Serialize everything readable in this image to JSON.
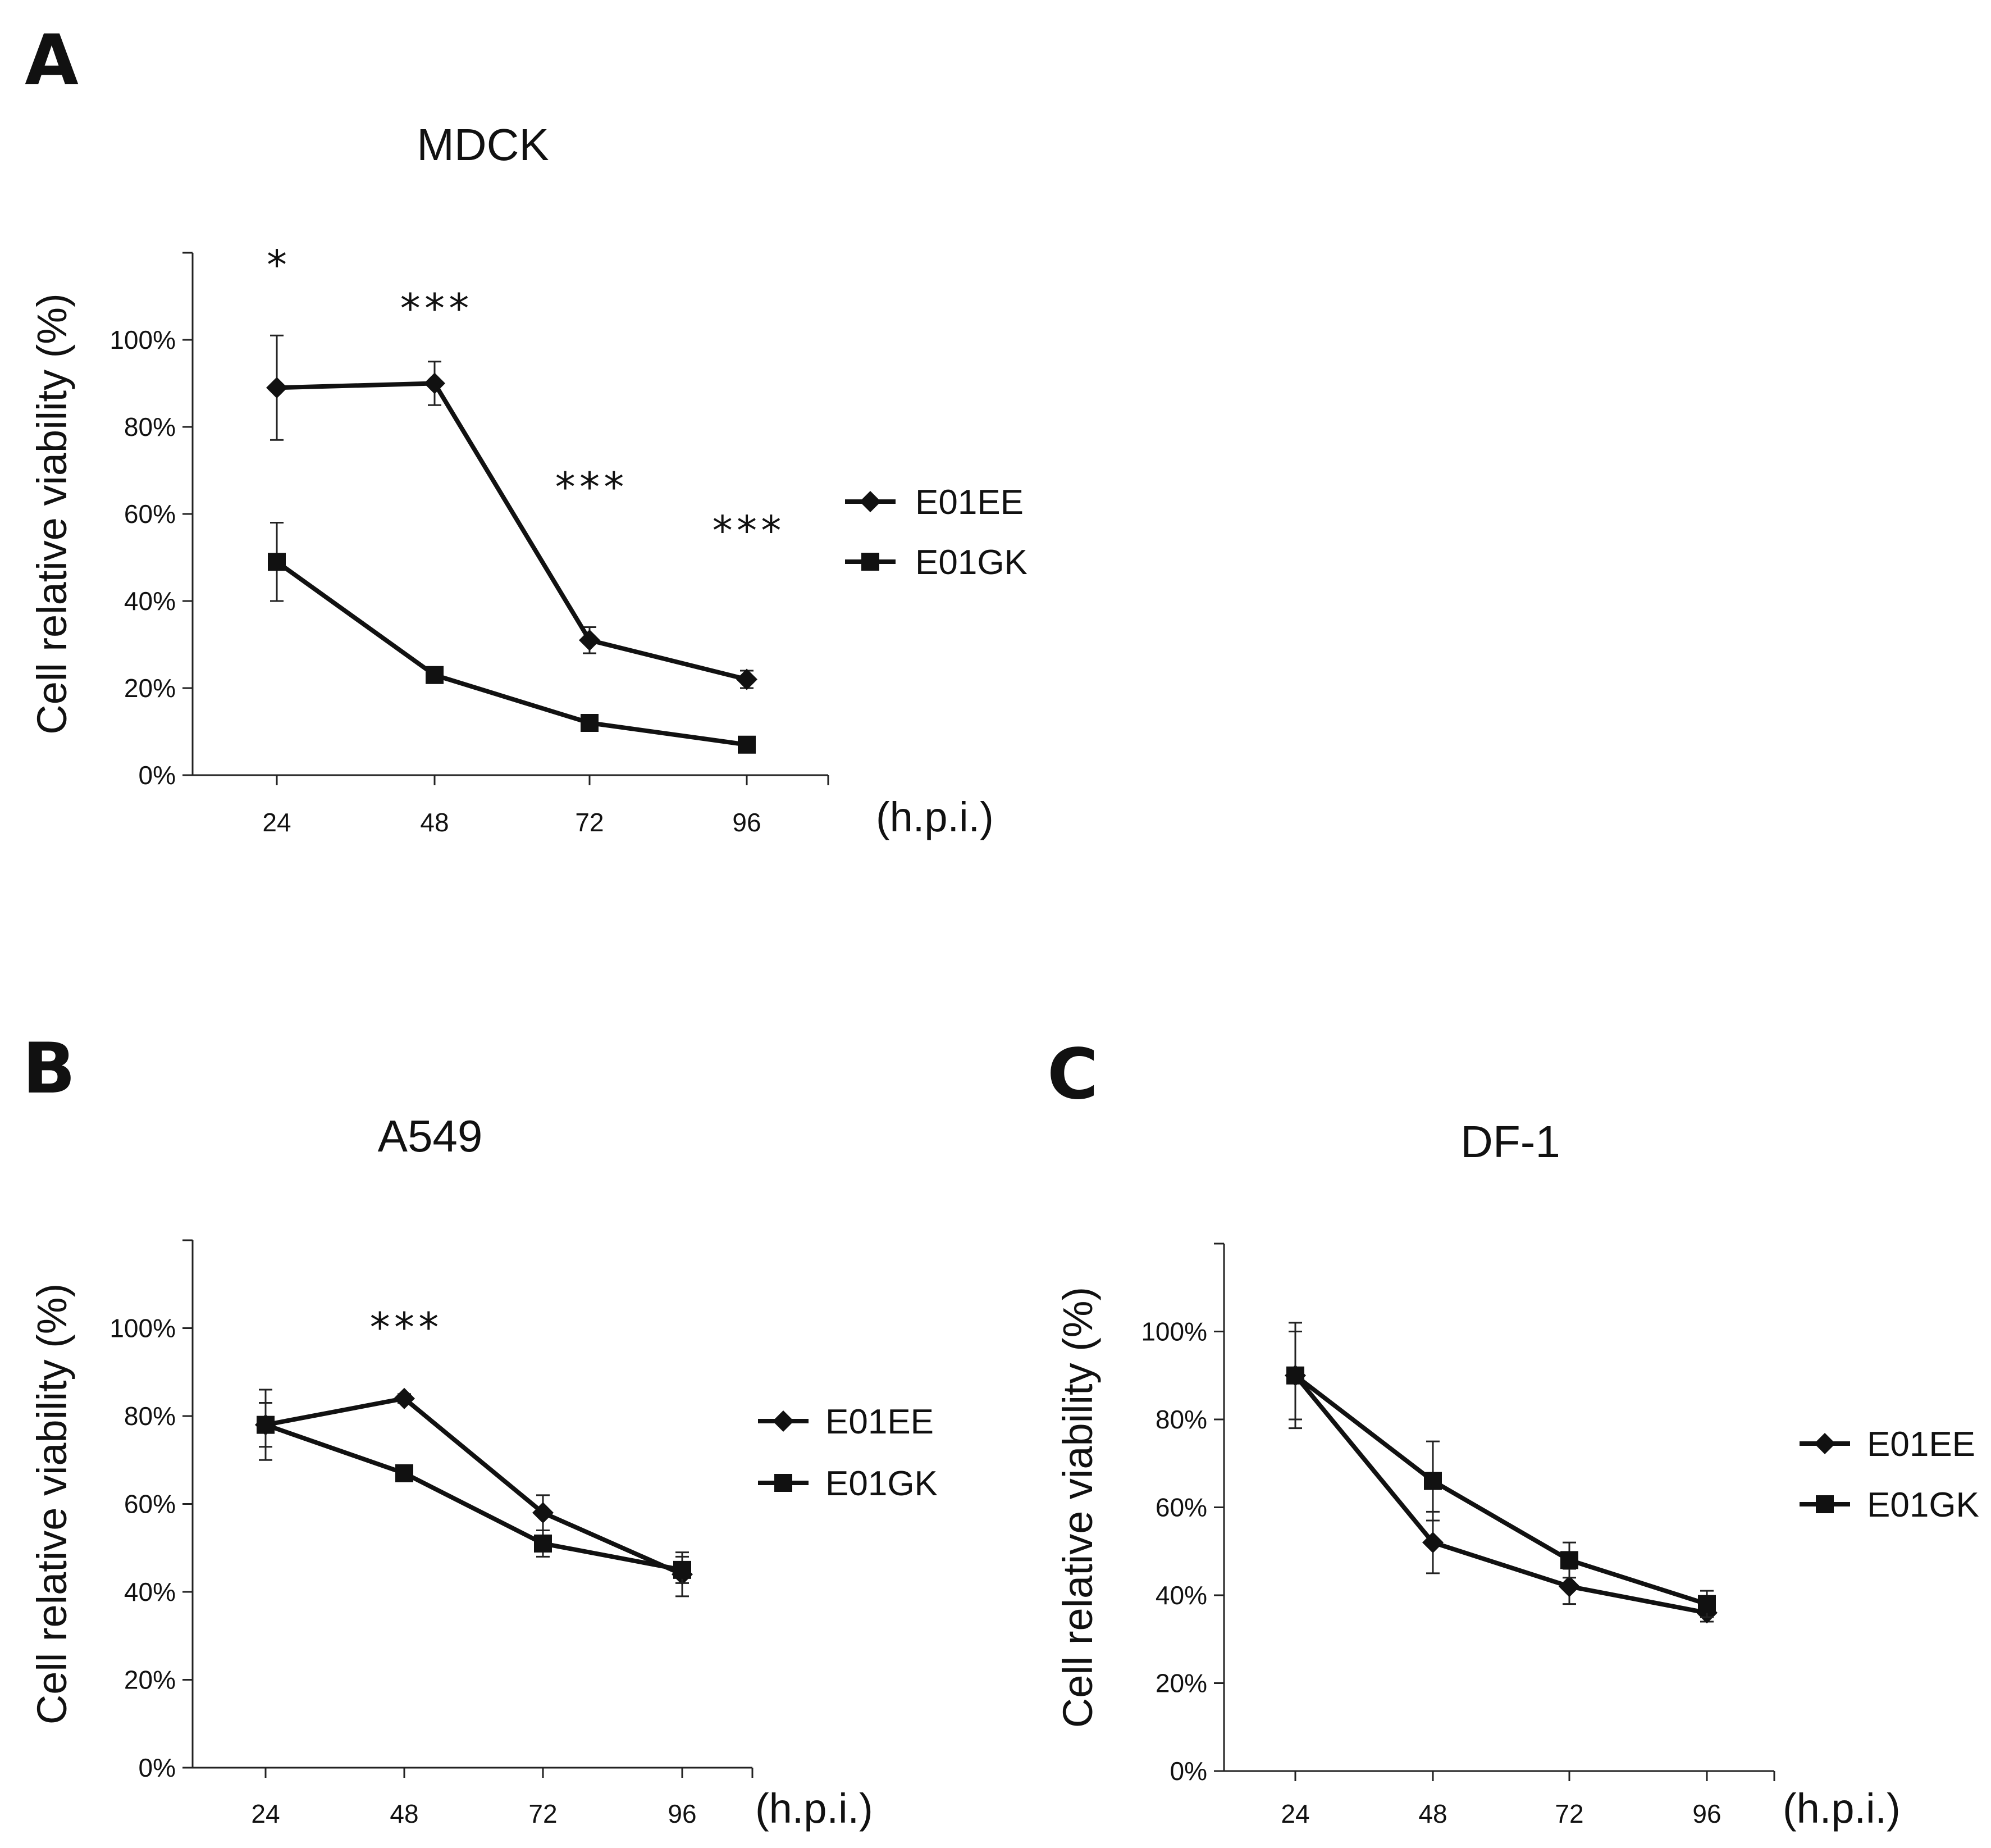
{
  "chart_data": [
    {
      "panel": "A",
      "title": "MDCK",
      "type": "line",
      "xlabel": "(h.p.i.)",
      "ylabel": "Cell relative viability (%)",
      "categories": [
        "24",
        "48",
        "72",
        "96"
      ],
      "yticks": [
        "0%",
        "20%",
        "40%",
        "60%",
        "80%",
        "100%"
      ],
      "ylim": [
        0,
        120
      ],
      "series": [
        {
          "name": "E01EE",
          "marker": "diamond",
          "values": [
            89,
            90,
            31,
            22
          ],
          "errors": [
            12,
            5,
            3,
            2
          ]
        },
        {
          "name": "E01GK",
          "marker": "square",
          "values": [
            49,
            23,
            12,
            7
          ],
          "errors": [
            9,
            1,
            1,
            1
          ]
        }
      ],
      "significance": [
        "*",
        "***",
        "***",
        "***"
      ],
      "significance_y": [
        114,
        104,
        63,
        53
      ],
      "legend": "right"
    },
    {
      "panel": "B",
      "title": "A549",
      "type": "line",
      "xlabel": "(h.p.i.)",
      "ylabel": "Cell relative viability (%)",
      "categories": [
        "24",
        "48",
        "72",
        "96"
      ],
      "yticks": [
        "0%",
        "20%",
        "40%",
        "60%",
        "80%",
        "100%"
      ],
      "ylim": [
        0,
        120
      ],
      "series": [
        {
          "name": "E01EE",
          "marker": "diamond",
          "values": [
            78,
            84,
            58,
            44
          ],
          "errors": [
            8,
            1,
            4,
            5
          ]
        },
        {
          "name": "E01GK",
          "marker": "square",
          "values": [
            78,
            67,
            51,
            45
          ],
          "errors": [
            5,
            1,
            3,
            3
          ]
        }
      ],
      "significance": [
        "",
        "***",
        "",
        ""
      ],
      "significance_y": [
        0,
        97,
        0,
        0
      ],
      "legend": "right"
    },
    {
      "panel": "C",
      "title": "DF-1",
      "type": "line",
      "xlabel": "(h.p.i.)",
      "ylabel": "Cell relative viability (%)",
      "categories": [
        "24",
        "48",
        "72",
        "96"
      ],
      "yticks": [
        "0%",
        "20%",
        "40%",
        "60%",
        "80%",
        "100%"
      ],
      "ylim": [
        0,
        120
      ],
      "series": [
        {
          "name": "E01EE",
          "marker": "diamond",
          "values": [
            90,
            52,
            42,
            36
          ],
          "errors": [
            10,
            7,
            4,
            2
          ]
        },
        {
          "name": "E01GK",
          "marker": "square",
          "values": [
            90,
            66,
            48,
            38
          ],
          "errors": [
            12,
            9,
            4,
            3
          ]
        }
      ],
      "significance": [
        "",
        "",
        "",
        ""
      ],
      "significance_y": [
        0,
        0,
        0,
        0
      ],
      "legend": "right"
    }
  ]
}
